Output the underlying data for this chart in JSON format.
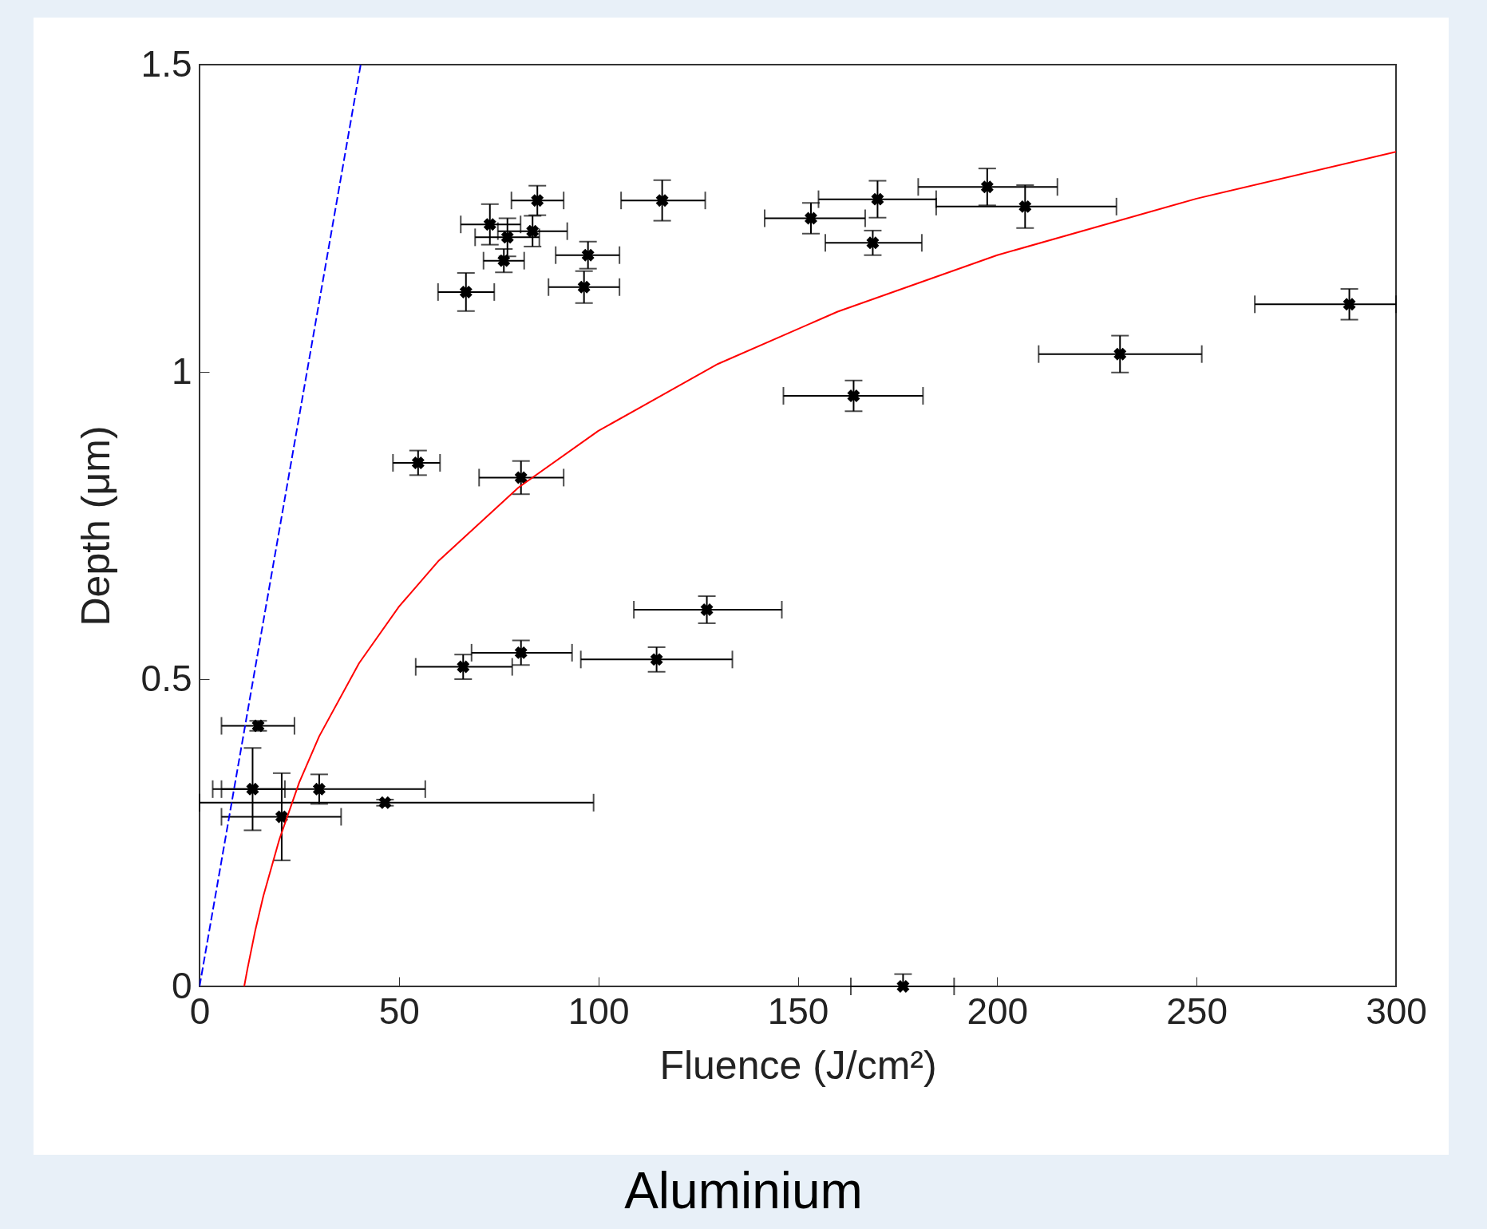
{
  "chart_data": {
    "type": "scatter",
    "xlabel": "Fluence (J/cm²)",
    "ylabel": "Depth (μm)",
    "xlim": [
      0,
      300
    ],
    "ylim": [
      0,
      1.5
    ],
    "xticks": [
      0,
      50,
      100,
      150,
      200,
      250,
      300
    ],
    "yticks": [
      0,
      0.5,
      1,
      1.5
    ],
    "grid": false,
    "annotations": [
      "Aluminium"
    ],
    "series": [
      {
        "color": "#000000",
        "marker": "cross",
        "x": [
          14.7,
          13.3,
          30.0,
          46.5,
          20.6,
          84.7,
          116.0,
          72.8,
          77.2,
          83.5,
          76.3,
          97.4,
          96.4,
          66.8,
          80.6,
          54.8,
          66.1,
          80.6,
          114.6,
          127.2,
          164.0,
          176.4,
          153.3,
          168.8,
          170.0,
          197.5,
          207.0,
          230.8,
          288.3
        ],
        "values": [
          0.424,
          0.321,
          0.321,
          0.299,
          0.276,
          1.279,
          1.279,
          1.24,
          1.219,
          1.229,
          1.181,
          1.19,
          1.138,
          1.13,
          0.828,
          0.852,
          0.52,
          0.543,
          0.532,
          0.613,
          0.961,
          0,
          1.25,
          1.21,
          1.281,
          1.301,
          1.269,
          1.029,
          1.11
        ],
        "errors": [
          0.008,
          0.067,
          0.024,
          0.005,
          0.071,
          0.024,
          0.033,
          0.033,
          0.031,
          0.025,
          0.019,
          0.022,
          0.026,
          0.031,
          0.027,
          0.02,
          0.02,
          0.02,
          0.02,
          0.022,
          0.025,
          [
            0,
            0.02
          ],
          0.025,
          0.02,
          0.03,
          0.03,
          0.035,
          0.03,
          0.025
        ],
        "xerrors": [
          [
            5.5,
            23.8
          ],
          [
            5.5,
            21.4
          ],
          [
            3.3,
            56.6
          ],
          [
            0,
            98.8
          ],
          [
            5.5,
            35.5
          ],
          [
            78.2,
            91.3
          ],
          [
            105.7,
            126.8
          ],
          [
            65.5,
            80.5
          ],
          [
            69.1,
            85.2
          ],
          [
            74.8,
            92.2
          ],
          [
            71.2,
            81.4
          ],
          [
            89.3,
            105.3
          ],
          [
            87.5,
            105.3
          ],
          [
            59.8,
            73.9
          ],
          [
            70.1,
            91.3
          ],
          [
            48.5,
            60.3
          ],
          [
            54.2,
            78.4
          ],
          [
            68.2,
            93.4
          ],
          [
            95.6,
            133.6
          ],
          [
            108.9,
            146.0
          ],
          [
            146.4,
            181.4
          ],
          [
            163.3,
            189.2
          ],
          [
            141.7,
            166.9
          ],
          [
            156.9,
            181.1
          ],
          [
            155.2,
            184.7
          ],
          [
            180.2,
            215.1
          ],
          [
            184.7,
            229.9
          ],
          [
            210.4,
            251.3
          ],
          [
            264.6,
            300
          ]
        ]
      },
      {
        "type": "line",
        "color": "#0000ff",
        "line_style": "dashed",
        "x": [
          0,
          40.4
        ],
        "values": [
          0,
          1.5
        ]
      },
      {
        "type": "line",
        "color": "#ff0000",
        "x": [
          11.2,
          12,
          14,
          16,
          20,
          25,
          30,
          40,
          50,
          60,
          80,
          100,
          130,
          160,
          200,
          250,
          300
        ],
        "values": [
          0,
          0.028,
          0.092,
          0.147,
          0.239,
          0.332,
          0.407,
          0.526,
          0.618,
          0.693,
          0.812,
          0.904,
          1.013,
          1.098,
          1.19,
          1.282,
          1.358
        ]
      }
    ]
  }
}
